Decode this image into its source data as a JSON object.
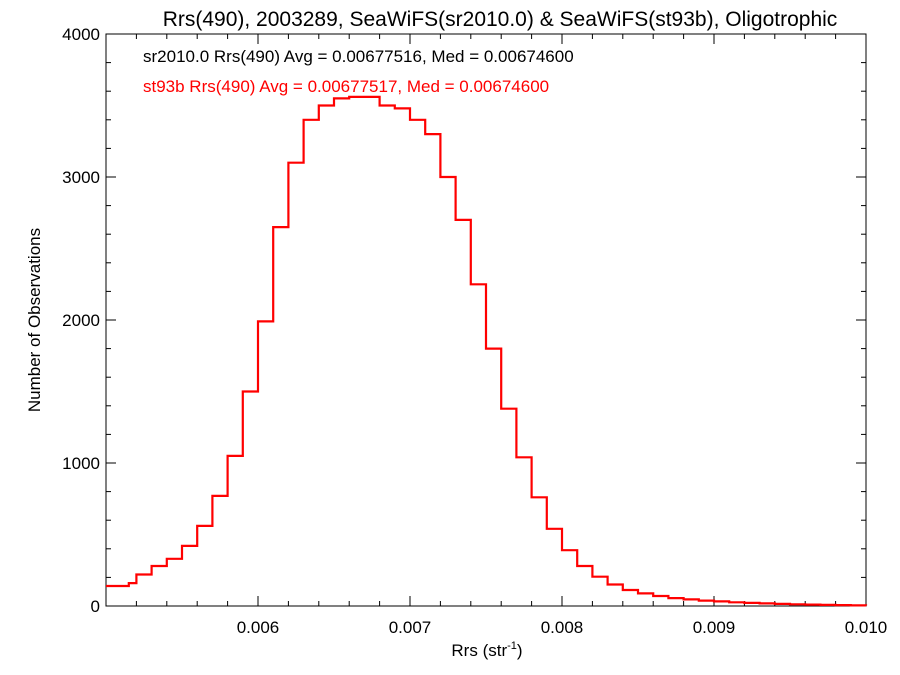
{
  "chart_data": {
    "type": "line",
    "title": "Rrs(490), 2003289, SeaWiFS(sr2010.0) & SeaWiFS(st93b), Oligotrophic",
    "xlabel": "Rrs (str",
    "xlabel_sup": "-1",
    "xlabel_close": ")",
    "ylabel": "Number of Observations",
    "xlim": [
      0.005,
      0.01
    ],
    "ylim": [
      0,
      4000
    ],
    "x_ticks": [
      0.006,
      0.007,
      0.008,
      0.009,
      0.01
    ],
    "x_tick_labels": [
      "0.006",
      "0.007",
      "0.008",
      "0.009",
      "0.010"
    ],
    "y_ticks": [
      0,
      1000,
      2000,
      3000,
      4000
    ],
    "y_tick_labels": [
      "0",
      "1000",
      "2000",
      "3000",
      "4000"
    ],
    "grid": false,
    "annotations": [
      {
        "text": "sr2010.0 Rrs(490) Avg = 0.00677516, Med = 0.00674600",
        "color": "#000000"
      },
      {
        "text": "st93b Rrs(490) Avg = 0.00677517, Med = 0.00674600",
        "color": "#ff0000"
      }
    ],
    "series": [
      {
        "color": "#ff0000",
        "style": "step",
        "points": [
          [
            0.005,
            140
          ],
          [
            0.00515,
            160
          ],
          [
            0.0052,
            220
          ],
          [
            0.0053,
            280
          ],
          [
            0.0054,
            330
          ],
          [
            0.0055,
            420
          ],
          [
            0.0056,
            560
          ],
          [
            0.0057,
            770
          ],
          [
            0.0058,
            1050
          ],
          [
            0.0059,
            1500
          ],
          [
            0.006,
            1990
          ],
          [
            0.0061,
            2650
          ],
          [
            0.0062,
            3100
          ],
          [
            0.0063,
            3400
          ],
          [
            0.0064,
            3500
          ],
          [
            0.0065,
            3550
          ],
          [
            0.0066,
            3560
          ],
          [
            0.0067,
            3560
          ],
          [
            0.0068,
            3500
          ],
          [
            0.0069,
            3480
          ],
          [
            0.007,
            3400
          ],
          [
            0.0071,
            3300
          ],
          [
            0.0072,
            3000
          ],
          [
            0.0073,
            2700
          ],
          [
            0.0074,
            2250
          ],
          [
            0.0075,
            1800
          ],
          [
            0.0076,
            1380
          ],
          [
            0.0077,
            1040
          ],
          [
            0.0078,
            760
          ],
          [
            0.0079,
            540
          ],
          [
            0.008,
            390
          ],
          [
            0.0081,
            280
          ],
          [
            0.0082,
            205
          ],
          [
            0.0083,
            150
          ],
          [
            0.0084,
            112
          ],
          [
            0.0085,
            88
          ],
          [
            0.0086,
            70
          ],
          [
            0.0087,
            55
          ],
          [
            0.0088,
            46
          ],
          [
            0.0089,
            38
          ],
          [
            0.009,
            32
          ],
          [
            0.0091,
            26
          ],
          [
            0.0092,
            22
          ],
          [
            0.0093,
            18
          ],
          [
            0.0094,
            15
          ],
          [
            0.0095,
            12
          ],
          [
            0.0096,
            10
          ],
          [
            0.0097,
            8
          ],
          [
            0.0098,
            6
          ],
          [
            0.0099,
            4
          ],
          [
            0.01,
            3
          ]
        ]
      }
    ]
  }
}
